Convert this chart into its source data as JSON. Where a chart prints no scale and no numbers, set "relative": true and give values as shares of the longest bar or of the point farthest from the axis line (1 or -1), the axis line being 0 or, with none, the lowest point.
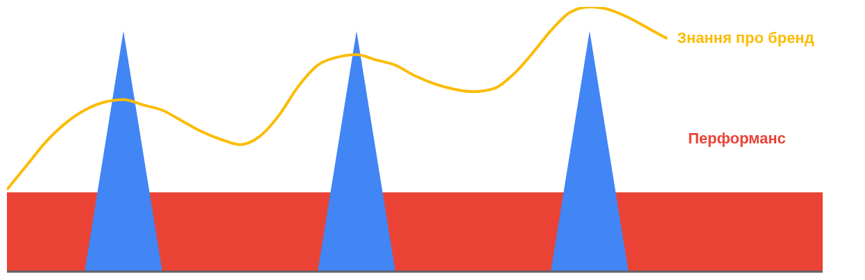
{
  "chart_data": {
    "type": "area",
    "relative": true,
    "legend": false,
    "grid": false,
    "marker": "none",
    "categories": [
      null,
      null,
      null,
      null,
      null,
      null,
      null,
      null,
      null,
      null,
      null,
      null,
      null,
      null,
      null,
      null,
      null,
      null,
      null,
      null,
      null,
      null,
      null,
      null,
      null,
      null,
      null,
      null,
      null,
      null,
      null,
      null,
      null,
      null,
      null,
      null,
      null,
      null,
      null,
      null,
      null,
      null,
      null
    ],
    "series": [
      {
        "name": "Перформанс",
        "color": "#ea4335",
        "values": [
          0.3,
          0.3,
          0.3,
          0.3,
          0.3,
          null,
          null,
          null,
          0.3,
          0.3,
          0.3,
          0.3,
          0.3,
          0.3,
          0.3,
          0.3,
          0.3,
          null,
          null,
          null,
          0.3,
          0.3,
          0.3,
          0.3,
          0.3,
          0.3,
          0.3,
          0.3,
          0.3,
          null,
          null,
          null,
          0.3,
          0.3,
          0.3,
          0.3,
          0.3,
          0.3,
          0.3,
          0.3,
          0.3,
          0.3,
          0.3
        ]
      },
      {
        "color": "#4285f4",
        "values": [
          null,
          null,
          null,
          null,
          0,
          0.455,
          0.91,
          0.455,
          0,
          null,
          null,
          null,
          null,
          null,
          null,
          null,
          0,
          0.455,
          0.91,
          0.455,
          0,
          null,
          null,
          null,
          null,
          null,
          null,
          null,
          0,
          0.455,
          0.91,
          0.455,
          0,
          null,
          null,
          null,
          null,
          null,
          null,
          null,
          null,
          null,
          null
        ]
      },
      {
        "name": "Знання про бренд",
        "type": "line",
        "color": "#fbbc04",
        "values": [
          0.31,
          0.4,
          0.49,
          0.56,
          0.61,
          0.64,
          0.65,
          0.63,
          0.61,
          0.57,
          0.53,
          0.5,
          0.48,
          0.51,
          0.59,
          0.7,
          0.78,
          0.81,
          0.82,
          0.8,
          0.78,
          0.74,
          0.71,
          0.69,
          0.68,
          0.69,
          0.74,
          0.82,
          0.91,
          0.98,
          1,
          0.99,
          0.96,
          0.92,
          0.88,
          null,
          null,
          null,
          null,
          null,
          null,
          null,
          null
        ]
      }
    ]
  }
}
